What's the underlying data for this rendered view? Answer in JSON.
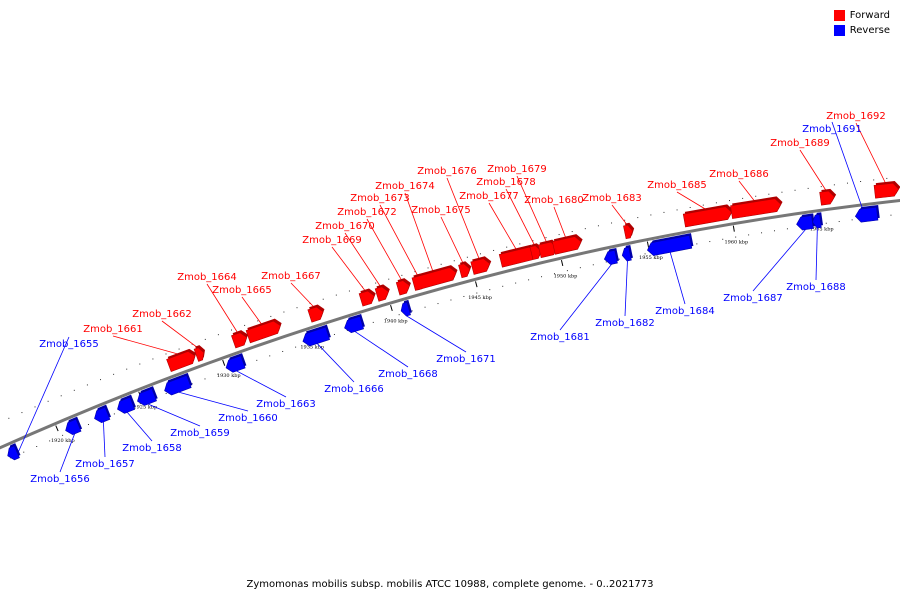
{
  "legend": {
    "forward": {
      "label": "Forward",
      "color": "#ff0000"
    },
    "reverse": {
      "label": "Reverse",
      "color": "#0000ff"
    }
  },
  "caption": "Zymomonas mobilis subsp. mobilis ATCC 10988, complete genome. - 0..2021773",
  "ticks": [
    "1920 kbp",
    "1925 kbp",
    "1930 kbp",
    "1935 kbp",
    "1940 kbp",
    "1945 kbp",
    "1950 kbp",
    "1955 kbp",
    "1960 kbp",
    "1965 kbp"
  ],
  "genes": [
    {
      "name": "Zmob_1655",
      "strand": "reverse"
    },
    {
      "name": "Zmob_1656",
      "strand": "reverse"
    },
    {
      "name": "Zmob_1657",
      "strand": "reverse"
    },
    {
      "name": "Zmob_1658",
      "strand": "reverse"
    },
    {
      "name": "Zmob_1659",
      "strand": "reverse"
    },
    {
      "name": "Zmob_1660",
      "strand": "reverse"
    },
    {
      "name": "Zmob_1661",
      "strand": "forward"
    },
    {
      "name": "Zmob_1662",
      "strand": "forward"
    },
    {
      "name": "Zmob_1663",
      "strand": "reverse"
    },
    {
      "name": "Zmob_1664",
      "strand": "forward"
    },
    {
      "name": "Zmob_1665",
      "strand": "forward"
    },
    {
      "name": "Zmob_1666",
      "strand": "reverse"
    },
    {
      "name": "Zmob_1667",
      "strand": "forward"
    },
    {
      "name": "Zmob_1668",
      "strand": "reverse"
    },
    {
      "name": "Zmob_1669",
      "strand": "forward"
    },
    {
      "name": "Zmob_1670",
      "strand": "forward"
    },
    {
      "name": "Zmob_1671",
      "strand": "reverse"
    },
    {
      "name": "Zmob_1672",
      "strand": "forward"
    },
    {
      "name": "Zmob_1673",
      "strand": "forward"
    },
    {
      "name": "Zmob_1674",
      "strand": "forward"
    },
    {
      "name": "Zmob_1675",
      "strand": "forward"
    },
    {
      "name": "Zmob_1676",
      "strand": "forward"
    },
    {
      "name": "Zmob_1677",
      "strand": "forward"
    },
    {
      "name": "Zmob_1678",
      "strand": "forward"
    },
    {
      "name": "Zmob_1679",
      "strand": "forward"
    },
    {
      "name": "Zmob_1680",
      "strand": "forward"
    },
    {
      "name": "Zmob_1681",
      "strand": "reverse"
    },
    {
      "name": "Zmob_1682",
      "strand": "reverse"
    },
    {
      "name": "Zmob_1683",
      "strand": "forward"
    },
    {
      "name": "Zmob_1684",
      "strand": "reverse"
    },
    {
      "name": "Zmob_1685",
      "strand": "forward"
    },
    {
      "name": "Zmob_1686",
      "strand": "forward"
    },
    {
      "name": "Zmob_1687",
      "strand": "reverse"
    },
    {
      "name": "Zmob_1688",
      "strand": "reverse"
    },
    {
      "name": "Zmob_1689",
      "strand": "forward"
    },
    {
      "name": "Zmob_1691",
      "strand": "reverse"
    },
    {
      "name": "Zmob_1692",
      "strand": "forward"
    }
  ]
}
